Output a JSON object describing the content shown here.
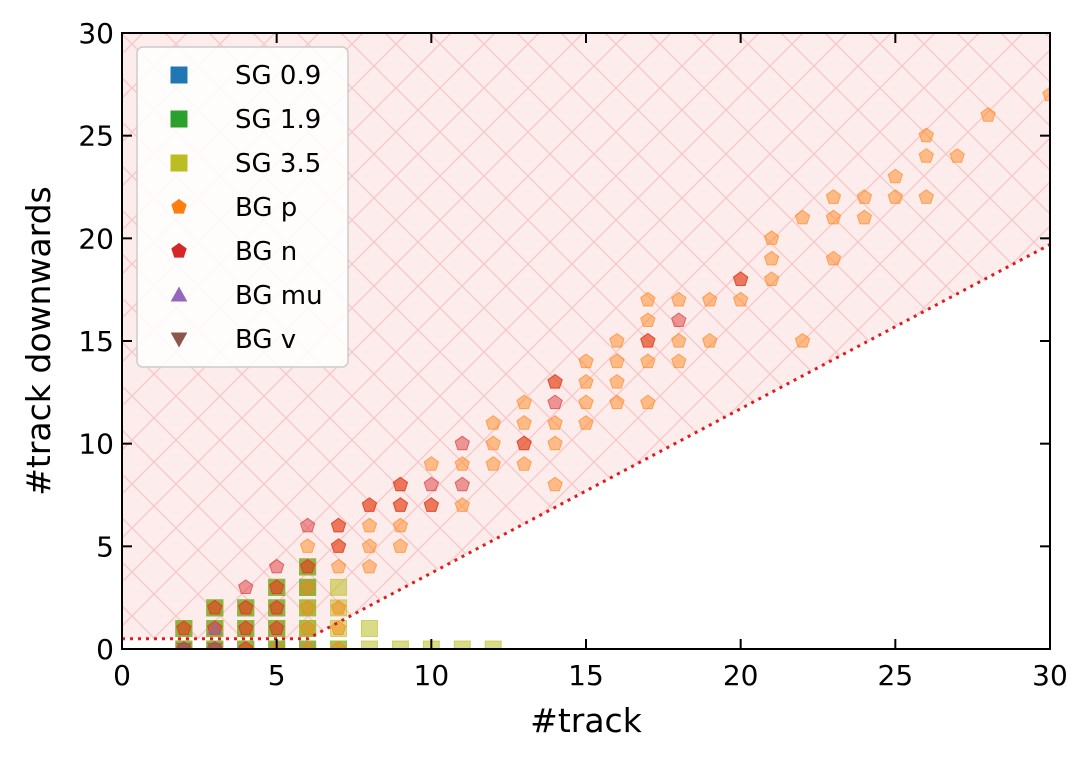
{
  "chart_data": {
    "type": "scatter",
    "xlabel": "#track",
    "ylabel": "#track downwards",
    "xlim": [
      0,
      30
    ],
    "ylim": [
      0,
      30
    ],
    "xticks": [
      0,
      5,
      10,
      15,
      20,
      25,
      30
    ],
    "yticks": [
      0,
      5,
      10,
      15,
      20,
      25,
      30
    ],
    "grid": false,
    "legend_position": "top-left",
    "cut_line": {
      "style": "dotted",
      "color": "#e31a1c",
      "points": [
        [
          0,
          0.5
        ],
        [
          6,
          0.5
        ],
        [
          30,
          19.7
        ]
      ]
    },
    "shaded_region": {
      "fill": "#fdecec",
      "hatch": "cross-diagonal",
      "description": "area above the cut line"
    },
    "series": [
      {
        "name": "SG 0.9",
        "marker": "square",
        "color": "#1f77b4",
        "points": [
          [
            2,
            0
          ],
          [
            3,
            0
          ],
          [
            4,
            0
          ],
          [
            5,
            0
          ],
          [
            6,
            0
          ],
          [
            2,
            1
          ],
          [
            3,
            1
          ],
          [
            4,
            1
          ],
          [
            5,
            1
          ],
          [
            3,
            2
          ],
          [
            4,
            2
          ],
          [
            5,
            2
          ],
          [
            5,
            3
          ],
          [
            6,
            3
          ],
          [
            6,
            4
          ]
        ]
      },
      {
        "name": "SG 1.9",
        "marker": "square",
        "color": "#2ca02c",
        "points": [
          [
            2,
            0
          ],
          [
            3,
            0
          ],
          [
            4,
            0
          ],
          [
            5,
            0
          ],
          [
            6,
            0
          ],
          [
            7,
            0
          ],
          [
            2,
            1
          ],
          [
            3,
            1
          ],
          [
            4,
            1
          ],
          [
            5,
            1
          ],
          [
            6,
            1
          ],
          [
            3,
            2
          ],
          [
            4,
            2
          ],
          [
            5,
            2
          ],
          [
            6,
            2
          ],
          [
            5,
            3
          ],
          [
            6,
            3
          ],
          [
            6,
            4
          ]
        ]
      },
      {
        "name": "SG 3.5",
        "marker": "square",
        "color": "#bcbd22",
        "points": [
          [
            2,
            0
          ],
          [
            3,
            0
          ],
          [
            4,
            0
          ],
          [
            5,
            0
          ],
          [
            6,
            0
          ],
          [
            7,
            0
          ],
          [
            8,
            0
          ],
          [
            9,
            0
          ],
          [
            10,
            0
          ],
          [
            11,
            0
          ],
          [
            12,
            0
          ],
          [
            2,
            1
          ],
          [
            3,
            1
          ],
          [
            4,
            1
          ],
          [
            5,
            1
          ],
          [
            6,
            1
          ],
          [
            7,
            1
          ],
          [
            8,
            1
          ],
          [
            3,
            2
          ],
          [
            4,
            2
          ],
          [
            5,
            2
          ],
          [
            6,
            2
          ],
          [
            7,
            2
          ],
          [
            5,
            3
          ],
          [
            6,
            3
          ],
          [
            7,
            3
          ],
          [
            6,
            4
          ]
        ]
      },
      {
        "name": "BG p",
        "marker": "pentagon",
        "color": "#ff7f0e",
        "points": [
          [
            2,
            0
          ],
          [
            3,
            0
          ],
          [
            4,
            0
          ],
          [
            5,
            0
          ],
          [
            6,
            0
          ],
          [
            7,
            0
          ],
          [
            2,
            1
          ],
          [
            3,
            1
          ],
          [
            4,
            1
          ],
          [
            5,
            1
          ],
          [
            6,
            1
          ],
          [
            7,
            1
          ],
          [
            3,
            2
          ],
          [
            4,
            2
          ],
          [
            5,
            2
          ],
          [
            6,
            2
          ],
          [
            7,
            2
          ],
          [
            5,
            3
          ],
          [
            6,
            3
          ],
          [
            6,
            4
          ],
          [
            7,
            4
          ],
          [
            8,
            4
          ],
          [
            6,
            5
          ],
          [
            7,
            5
          ],
          [
            8,
            5
          ],
          [
            9,
            5
          ],
          [
            7,
            6
          ],
          [
            8,
            6
          ],
          [
            9,
            6
          ],
          [
            8,
            7
          ],
          [
            9,
            7
          ],
          [
            10,
            7
          ],
          [
            11,
            7
          ],
          [
            9,
            8
          ],
          [
            14,
            8
          ],
          [
            10,
            9
          ],
          [
            11,
            9
          ],
          [
            12,
            9
          ],
          [
            13,
            9
          ],
          [
            12,
            10
          ],
          [
            13,
            10
          ],
          [
            14,
            10
          ],
          [
            12,
            11
          ],
          [
            13,
            11
          ],
          [
            14,
            11
          ],
          [
            15,
            11
          ],
          [
            13,
            12
          ],
          [
            15,
            12
          ],
          [
            16,
            12
          ],
          [
            17,
            12
          ],
          [
            14,
            13
          ],
          [
            15,
            13
          ],
          [
            16,
            13
          ],
          [
            15,
            14
          ],
          [
            16,
            14
          ],
          [
            17,
            14
          ],
          [
            18,
            14
          ],
          [
            16,
            15
          ],
          [
            17,
            15
          ],
          [
            18,
            15
          ],
          [
            19,
            15
          ],
          [
            22,
            15
          ],
          [
            17,
            16
          ],
          [
            17,
            17
          ],
          [
            18,
            17
          ],
          [
            19,
            17
          ],
          [
            20,
            17
          ],
          [
            20,
            18
          ],
          [
            21,
            18
          ],
          [
            21,
            19
          ],
          [
            23,
            19
          ],
          [
            21,
            20
          ],
          [
            22,
            21
          ],
          [
            23,
            21
          ],
          [
            24,
            21
          ],
          [
            23,
            22
          ],
          [
            24,
            22
          ],
          [
            25,
            22
          ],
          [
            26,
            22
          ],
          [
            25,
            23
          ],
          [
            26,
            24
          ],
          [
            27,
            24
          ],
          [
            26,
            25
          ],
          [
            28,
            26
          ],
          [
            30,
            27
          ]
        ]
      },
      {
        "name": "BG n",
        "marker": "pentagon",
        "color": "#d62728",
        "points": [
          [
            2,
            0
          ],
          [
            3,
            0
          ],
          [
            4,
            0
          ],
          [
            2,
            1
          ],
          [
            3,
            1
          ],
          [
            4,
            1
          ],
          [
            5,
            1
          ],
          [
            3,
            2
          ],
          [
            4,
            2
          ],
          [
            5,
            2
          ],
          [
            4,
            3
          ],
          [
            5,
            3
          ],
          [
            5,
            4
          ],
          [
            6,
            4
          ],
          [
            7,
            5
          ],
          [
            6,
            6
          ],
          [
            7,
            6
          ],
          [
            8,
            7
          ],
          [
            9,
            7
          ],
          [
            10,
            7
          ],
          [
            9,
            8
          ],
          [
            10,
            8
          ],
          [
            11,
            8
          ],
          [
            11,
            10
          ],
          [
            13,
            10
          ],
          [
            14,
            12
          ],
          [
            14,
            13
          ],
          [
            17,
            15
          ],
          [
            18,
            16
          ],
          [
            20,
            18
          ]
        ]
      },
      {
        "name": "BG mu",
        "marker": "triangle-up",
        "color": "#9467bd",
        "points": [
          [
            2,
            0
          ],
          [
            3,
            0
          ],
          [
            3,
            1
          ]
        ]
      },
      {
        "name": "BG v",
        "marker": "triangle-down",
        "color": "#8c564b",
        "points": [
          [
            2,
            0
          ],
          [
            3,
            0
          ]
        ]
      }
    ]
  }
}
